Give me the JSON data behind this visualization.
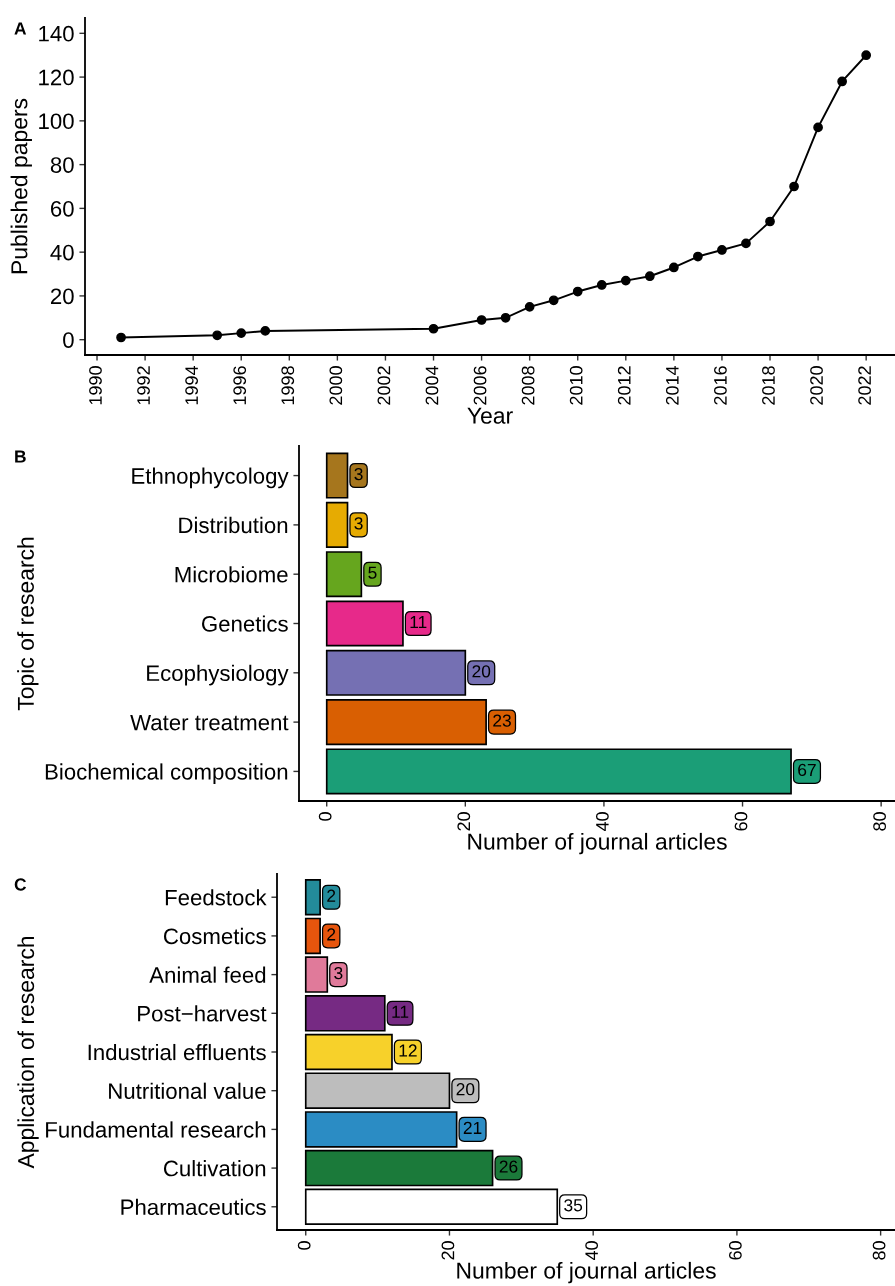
{
  "chart_data": [
    {
      "type": "line",
      "title": "A",
      "xlabel": "Year",
      "ylabel": "Published papers",
      "x": [
        1991,
        1995,
        1996,
        1997,
        2004,
        2006,
        2007,
        2008,
        2009,
        2010,
        2011,
        2012,
        2013,
        2014,
        2015,
        2016,
        2017,
        2018,
        2019,
        2020,
        2021,
        2022
      ],
      "series": [
        {
          "color": "#000000",
          "values": [
            1,
            2,
            3,
            4,
            5,
            9,
            10,
            15,
            18,
            22,
            25,
            27,
            29,
            33,
            38,
            41,
            44,
            54,
            70,
            97,
            118,
            130
          ]
        }
      ],
      "xlim": [
        1989.5,
        2023.2
      ],
      "ylim": [
        -7,
        147
      ],
      "xticks": [
        1990,
        1992,
        1994,
        1996,
        1998,
        2000,
        2002,
        2004,
        2006,
        2008,
        2010,
        2012,
        2014,
        2016,
        2018,
        2020,
        2022
      ],
      "yticks": [
        0,
        20,
        40,
        60,
        80,
        100,
        120,
        140
      ],
      "marker": "circle",
      "line_style": "solid"
    },
    {
      "type": "bar",
      "orientation": "horizontal",
      "title": "B",
      "xlabel": "Number of journal articles",
      "ylabel": "Topic of research",
      "categories": [
        "Ethnophycology",
        "Distribution",
        "Microbiome",
        "Genetics",
        "Ecophysiology",
        "Water treatment",
        "Biochemical composition"
      ],
      "values": [
        3,
        3,
        5,
        11,
        20,
        23,
        67
      ],
      "colors": [
        "#a6761d",
        "#e6ab02",
        "#66a61e",
        "#e7298a",
        "#7570b3",
        "#d95f02",
        "#1b9e77"
      ],
      "xlim": [
        -4,
        82
      ],
      "xticks": [
        0,
        20,
        40,
        60,
        80
      ],
      "data_labels": true
    },
    {
      "type": "bar",
      "orientation": "horizontal",
      "title": "C",
      "xlabel": "Number of journal articles",
      "ylabel": "Application of research",
      "categories": [
        "Feedstock",
        "Cosmetics",
        "Animal feed",
        "Post−harvest",
        "Industrial effluents",
        "Nutritional value",
        "Fundamental research",
        "Cultivation",
        "Pharmaceutics"
      ],
      "values": [
        2,
        2,
        3,
        11,
        12,
        20,
        21,
        26,
        35
      ],
      "colors": [
        "#238b9a",
        "#e6550d",
        "#e07a9a",
        "#762a83",
        "#f7d12a",
        "#bdbdbd",
        "#2b8cc4",
        "#1b7a3a",
        "#ffffff"
      ],
      "xlim": [
        -4,
        82
      ],
      "xticks": [
        0,
        20,
        40,
        60,
        80
      ],
      "data_labels": true
    }
  ]
}
